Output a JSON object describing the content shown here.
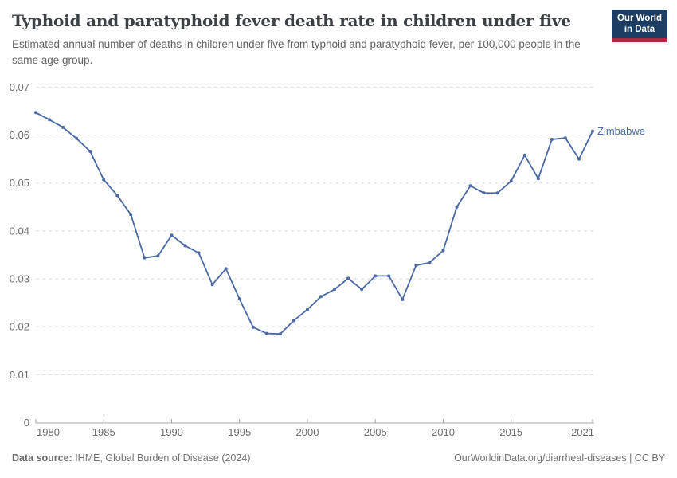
{
  "header": {
    "title": "Typhoid and paratyphoid fever death rate in children under five",
    "subtitle": "Estimated annual number of deaths in children under five from typhoid and paratyphoid fever, per 100,000 people in the same age group.",
    "logo_line1": "Our World",
    "logo_line2": "in Data"
  },
  "chart_data": {
    "type": "line",
    "title": "Typhoid and paratyphoid fever death rate in children under five",
    "xlabel": "",
    "ylabel": "",
    "xlim": [
      1980,
      2021
    ],
    "ylim": [
      0,
      0.07
    ],
    "grid": "horizontal-dashed",
    "legend_position": "end-of-line-label",
    "xticks": [
      1980,
      1985,
      1990,
      1995,
      2000,
      2005,
      2010,
      2015,
      2021
    ],
    "xtick_labels": [
      "1980",
      "1985",
      "1990",
      "1995",
      "2000",
      "2005",
      "2010",
      "2015",
      "2021"
    ],
    "yticks": [
      0,
      0.01,
      0.02,
      0.03,
      0.04,
      0.05,
      0.06,
      0.07
    ],
    "ytick_labels": [
      "0",
      "0.01",
      "0.02",
      "0.03",
      "0.04",
      "0.05",
      "0.06",
      "0.07"
    ],
    "x": [
      1980,
      1981,
      1982,
      1983,
      1984,
      1985,
      1986,
      1987,
      1988,
      1989,
      1990,
      1991,
      1992,
      1993,
      1994,
      1995,
      1996,
      1997,
      1998,
      1999,
      2000,
      2001,
      2002,
      2003,
      2004,
      2005,
      2006,
      2007,
      2008,
      2009,
      2010,
      2011,
      2012,
      2013,
      2014,
      2015,
      2016,
      2017,
      2018,
      2019,
      2020,
      2021
    ],
    "series": [
      {
        "name": "Zimbabwe",
        "color": "#4a69a4",
        "values": [
          0.0647,
          0.0632,
          0.0616,
          0.0593,
          0.0566,
          0.0507,
          0.0474,
          0.0434,
          0.0344,
          0.0348,
          0.0391,
          0.0369,
          0.0354,
          0.0288,
          0.0321,
          0.0258,
          0.0199,
          0.0186,
          0.0185,
          0.0213,
          0.0236,
          0.0263,
          0.0278,
          0.0301,
          0.0278,
          0.0306,
          0.0306,
          0.0257,
          0.0328,
          0.0334,
          0.0359,
          0.045,
          0.0494,
          0.0479,
          0.0479,
          0.0504,
          0.0558,
          0.0509,
          0.0591,
          0.0594,
          0.055,
          0.0608
        ]
      }
    ]
  },
  "colors": {
    "line": "#4a69a4",
    "gridline": "#dedede",
    "axis": "#a5a5a5",
    "tick_text": "#6e6e6e",
    "logo_bg": "#1d3d63",
    "logo_stripe": "#aa2a44"
  },
  "footer": {
    "source_label": "Data source:",
    "source_text": " IHME, Global Burden of Disease (2024)",
    "credit": "OurWorldinData.org/diarrheal-diseases | CC BY"
  }
}
